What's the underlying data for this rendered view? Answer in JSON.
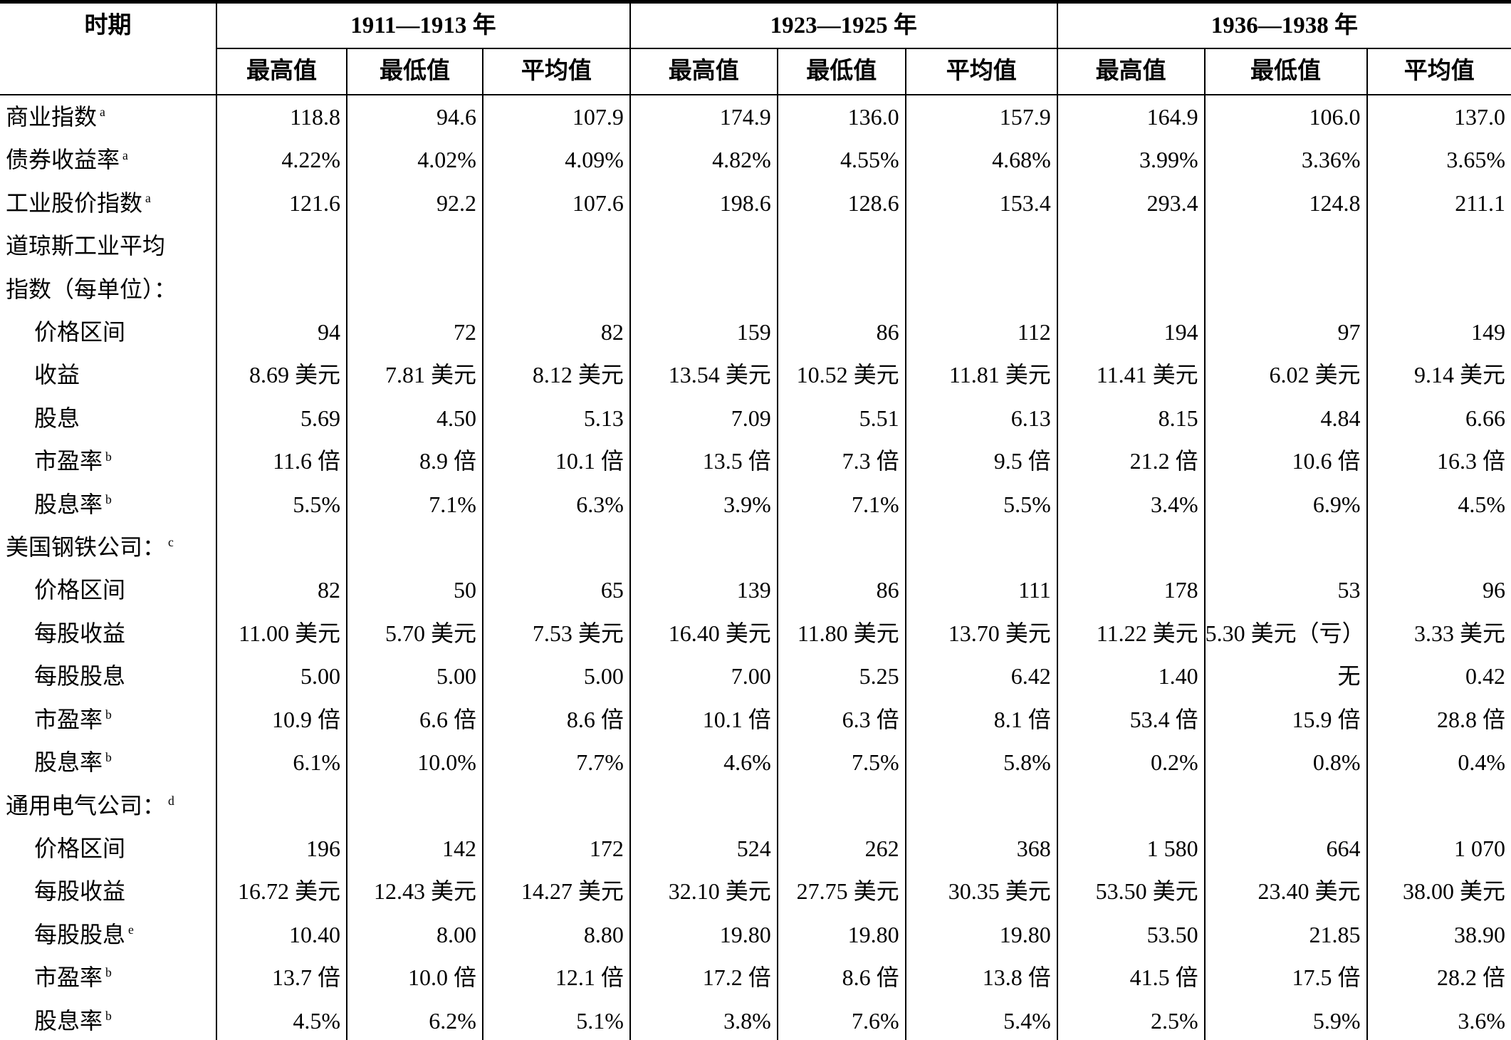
{
  "table": {
    "header": {
      "period_col": "时期",
      "periods": [
        "1911—1913 年",
        "1923—1925 年",
        "1936—1938 年"
      ],
      "subheaders": [
        "最高值",
        "最低值",
        "平均值"
      ]
    },
    "rows": [
      {
        "label": "商业指数",
        "sup": "a",
        "indent": 0,
        "values": [
          "118.8",
          "94.6",
          "107.9",
          "174.9",
          "136.0",
          "157.9",
          "164.9",
          "106.0",
          "137.0"
        ]
      },
      {
        "label": "债券收益率",
        "sup": "a",
        "indent": 0,
        "values": [
          "4.22%",
          "4.02%",
          "4.09%",
          "4.82%",
          "4.55%",
          "4.68%",
          "3.99%",
          "3.36%",
          "3.65%"
        ]
      },
      {
        "label": "工业股价指数",
        "sup": "a",
        "indent": 0,
        "values": [
          "121.6",
          "92.2",
          "107.6",
          "198.6",
          "128.6",
          "153.4",
          "293.4",
          "124.8",
          "211.1"
        ]
      },
      {
        "label": "道琼斯工业平均",
        "label2": "指数（每单位）：",
        "indent": 0,
        "values": [
          "",
          "",
          "",
          "",
          "",
          "",
          "",
          "",
          ""
        ]
      },
      {
        "label": "价格区间",
        "indent": 1,
        "values": [
          "94",
          "72",
          "82",
          "159",
          "86",
          "112",
          "194",
          "97",
          "149"
        ]
      },
      {
        "label": "收益",
        "indent": 1,
        "values": [
          "8.69 美元",
          "7.81 美元",
          "8.12 美元",
          "13.54 美元",
          "10.52 美元",
          "11.81 美元",
          "11.41 美元",
          "6.02 美元",
          "9.14 美元"
        ]
      },
      {
        "label": "股息",
        "indent": 1,
        "values": [
          "5.69",
          "4.50",
          "5.13",
          "7.09",
          "5.51",
          "6.13",
          "8.15",
          "4.84",
          "6.66"
        ]
      },
      {
        "label": "市盈率",
        "sup": "b",
        "indent": 1,
        "values": [
          "11.6 倍",
          "8.9 倍",
          "10.1 倍",
          "13.5 倍",
          "7.3 倍",
          "9.5 倍",
          "21.2 倍",
          "10.6 倍",
          "16.3 倍"
        ]
      },
      {
        "label": "股息率",
        "sup": "b",
        "indent": 1,
        "values": [
          "5.5%",
          "7.1%",
          "6.3%",
          "3.9%",
          "7.1%",
          "5.5%",
          "3.4%",
          "6.9%",
          "4.5%"
        ]
      },
      {
        "label": "美国钢铁公司：",
        "sup": "c",
        "indent": 0,
        "values": [
          "",
          "",
          "",
          "",
          "",
          "",
          "",
          "",
          ""
        ]
      },
      {
        "label": "价格区间",
        "indent": 1,
        "values": [
          "82",
          "50",
          "65",
          "139",
          "86",
          "111",
          "178",
          "53",
          "96"
        ]
      },
      {
        "label": "每股收益",
        "indent": 1,
        "values": [
          "11.00 美元",
          "5.70 美元",
          "7.53 美元",
          "16.40 美元",
          "11.80 美元",
          "13.70 美元",
          "11.22 美元",
          "5.30 美元（亏）",
          "3.33 美元"
        ]
      },
      {
        "label": "每股股息",
        "indent": 1,
        "values": [
          "5.00",
          "5.00",
          "5.00",
          "7.00",
          "5.25",
          "6.42",
          "1.40",
          "无",
          "0.42"
        ]
      },
      {
        "label": "市盈率",
        "sup": "b",
        "indent": 1,
        "values": [
          "10.9 倍",
          "6.6 倍",
          "8.6 倍",
          "10.1 倍",
          "6.3 倍",
          "8.1 倍",
          "53.4 倍",
          "15.9 倍",
          "28.8 倍"
        ]
      },
      {
        "label": "股息率",
        "sup": "b",
        "indent": 1,
        "values": [
          "6.1%",
          "10.0%",
          "7.7%",
          "4.6%",
          "7.5%",
          "5.8%",
          "0.2%",
          "0.8%",
          "0.4%"
        ]
      },
      {
        "label": "通用电气公司：",
        "sup": "d",
        "indent": 0,
        "values": [
          "",
          "",
          "",
          "",
          "",
          "",
          "",
          "",
          ""
        ]
      },
      {
        "label": "价格区间",
        "indent": 1,
        "values": [
          "196",
          "142",
          "172",
          "524",
          "262",
          "368",
          "1 580",
          "664",
          "1 070"
        ]
      },
      {
        "label": "每股收益",
        "indent": 1,
        "values": [
          "16.72 美元",
          "12.43 美元",
          "14.27 美元",
          "32.10 美元",
          "27.75 美元",
          "30.35 美元",
          "53.50 美元",
          "23.40 美元",
          "38.00 美元"
        ]
      },
      {
        "label": "每股股息",
        "sup": "e",
        "indent": 1,
        "values": [
          "10.40",
          "8.00",
          "8.80",
          "19.80",
          "19.80",
          "19.80",
          "53.50",
          "21.85",
          "38.90"
        ]
      },
      {
        "label": "市盈率",
        "sup": "b",
        "indent": 1,
        "values": [
          "13.7 倍",
          "10.0 倍",
          "12.1 倍",
          "17.2 倍",
          "8.6 倍",
          "13.8 倍",
          "41.5 倍",
          "17.5 倍",
          "28.2 倍"
        ]
      },
      {
        "label": "股息率",
        "sup": "b",
        "indent": 1,
        "values": [
          "4.5%",
          "6.2%",
          "5.1%",
          "3.8%",
          "7.6%",
          "5.4%",
          "2.5%",
          "5.9%",
          "3.6%"
        ]
      }
    ]
  }
}
